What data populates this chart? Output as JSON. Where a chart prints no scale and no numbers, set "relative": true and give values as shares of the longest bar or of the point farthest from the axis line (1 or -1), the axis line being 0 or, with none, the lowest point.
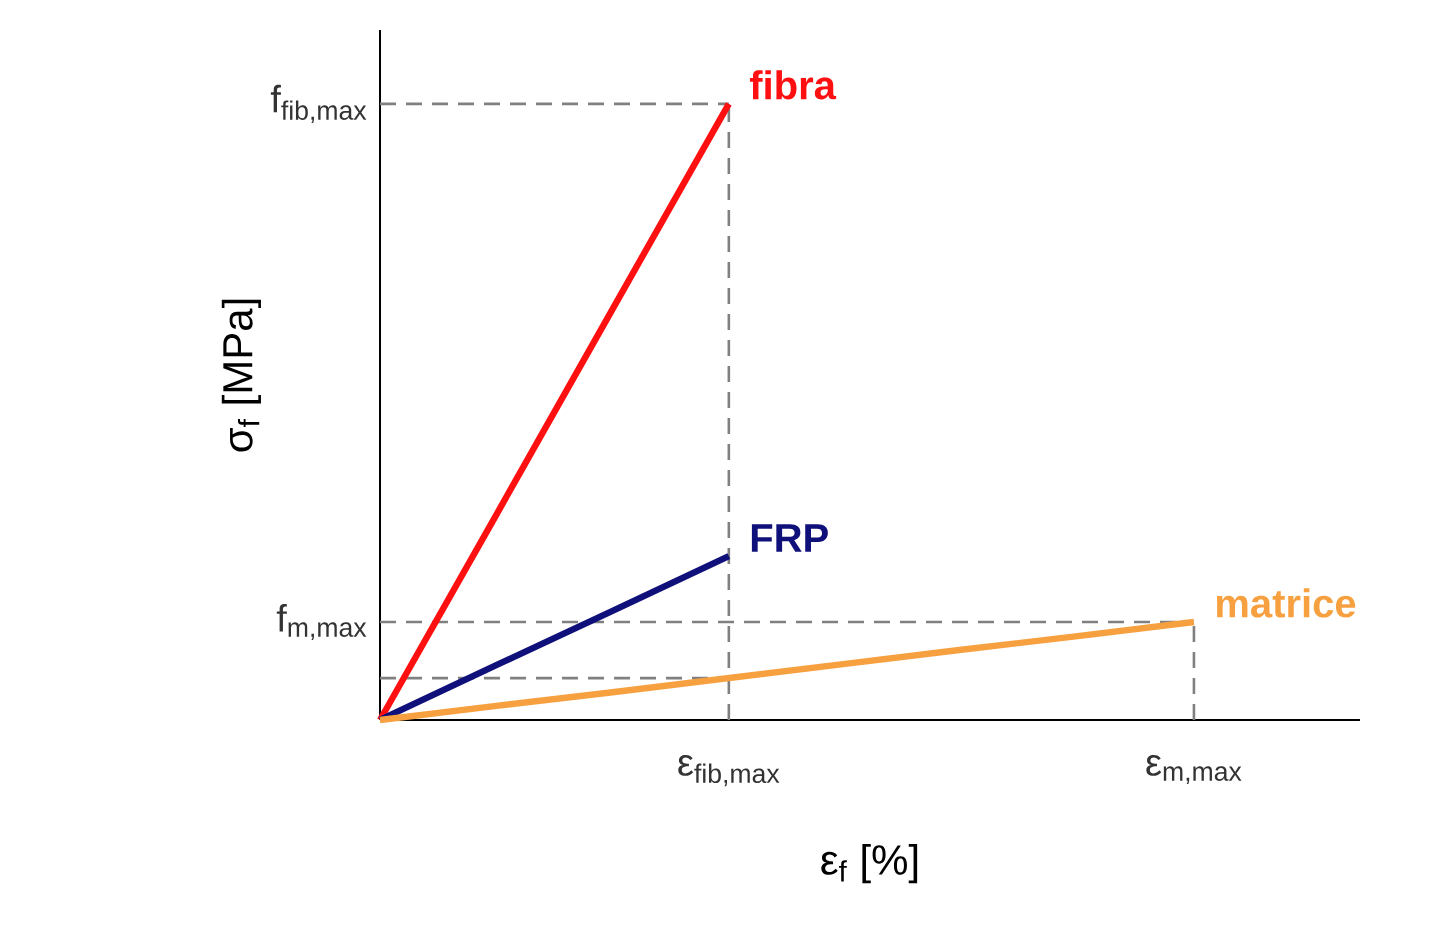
{
  "chart_data": {
    "type": "line",
    "relative": true,
    "xlabel": "ε$_{f}$ [%]",
    "ylabel": "σ$_{f}$ [MPa]",
    "categories": [
      null,
      null,
      null,
      "ε$_{fib,max}$",
      null,
      null,
      null,
      "ε$_{m,max}$"
    ],
    "ref_lines": [
      {
        "axis": "x",
        "value": "ε$_{fib,max}$",
        "color": "#808080",
        "line_style": "dashed"
      },
      {
        "axis": "x",
        "value": "ε$_{m,max}$",
        "color": "#808080",
        "line_style": "dashed"
      },
      {
        "axis": "y",
        "value": 1,
        "label": "f$_{fib,max}$",
        "color": "#808080",
        "line_style": "dashed"
      },
      {
        "axis": "y",
        "value": 0.159,
        "label": "f$_{m,max}$",
        "color": "#808080",
        "line_style": "dashed"
      },
      {
        "axis": "y",
        "value": 0.068,
        "color": "#808080",
        "line_style": "dashed"
      }
    ],
    "legend": false,
    "marker": "none",
    "series": [
      {
        "name": "fibra",
        "values": [
          0,
          0.333,
          0.667,
          1,
          null,
          null,
          null,
          null
        ],
        "color": "#ff1010",
        "line_style": "solid"
      },
      {
        "name": "FRP",
        "values": [
          0,
          0.089,
          0.177,
          0.266,
          null,
          null,
          null,
          null
        ],
        "color": "#10107a",
        "line_style": "solid"
      },
      {
        "name": "matrice",
        "values": [
          0,
          0.023,
          0.045,
          0.068,
          0.091,
          0.114,
          0.136,
          0.159
        ],
        "color": "#f7a040",
        "line_style": "solid"
      }
    ]
  }
}
